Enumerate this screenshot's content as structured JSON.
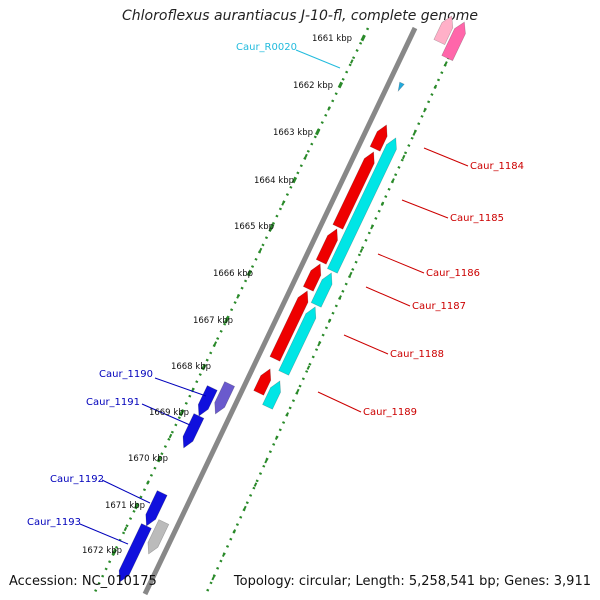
{
  "title": "Chloroflexus aurantiacus J-10-fl, complete genome",
  "accession_text": "Accession: NC_010175",
  "topology_text": "Topology: circular; Length: 5,258,541 bp; Genes: 3,911",
  "colors": {
    "backbone": "#888888",
    "tick": "#2a8a2a",
    "red_gene": "#ee0000",
    "cyan_gene": "#00e5e5",
    "blue_gene": "#1010dd",
    "purple_gene": "#6a5acd",
    "grey_gene": "#bbbbbb",
    "pink_gene": "#ff66aa",
    "red_label": "#cc0000",
    "blue_label": "#0000bb",
    "cyan_label": "#22bbdd"
  },
  "scale": {
    "unit": "kbp",
    "labels": [
      "1661 kbp",
      "1662 kbp",
      "1663 kbp",
      "1664 kbp",
      "1665 kbp",
      "1666 kbp",
      "1667 kbp",
      "1668 kbp",
      "1669 kbp",
      "1670 kbp",
      "1671 kbp",
      "1672 kbp"
    ]
  },
  "labels": {
    "caur_r0020": "Caur_R0020",
    "caur_1184": "Caur_1184",
    "caur_1185": "Caur_1185",
    "caur_1186": "Caur_1186",
    "caur_1187": "Caur_1187",
    "caur_1188": "Caur_1188",
    "caur_1189": "Caur_1189",
    "caur_1190": "Caur_1190",
    "caur_1191": "Caur_1191",
    "caur_1192": "Caur_1192",
    "caur_1193": "Caur_1193"
  }
}
